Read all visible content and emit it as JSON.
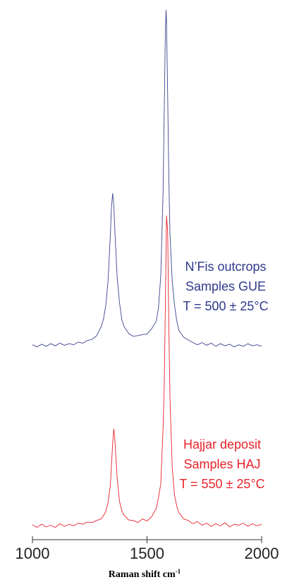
{
  "chart_data": {
    "type": "line",
    "x_label": {
      "text": "Raman shift cm",
      "superscript": "-1"
    },
    "x": [
      1000,
      1020,
      1040,
      1060,
      1080,
      1100,
      1120,
      1140,
      1160,
      1180,
      1200,
      1220,
      1240,
      1260,
      1280,
      1300,
      1310,
      1320,
      1330,
      1340,
      1345,
      1350,
      1355,
      1360,
      1370,
      1380,
      1390,
      1400,
      1420,
      1440,
      1460,
      1480,
      1500,
      1520,
      1540,
      1550,
      1560,
      1570,
      1575,
      1580,
      1583,
      1585,
      1590,
      1595,
      1600,
      1610,
      1620,
      1630,
      1640,
      1660,
      1680,
      1700,
      1720,
      1740,
      1760,
      1780,
      1800,
      1820,
      1840,
      1860,
      1880,
      1900,
      1920,
      1940,
      1960,
      1980,
      2000
    ],
    "series": [
      {
        "color": "#3d4590",
        "values": [
          36.6,
          36.2,
          36.7,
          36.3,
          36.8,
          36.4,
          36.9,
          36.5,
          36.8,
          36.6,
          37.1,
          36.9,
          37.4,
          37.6,
          38.3,
          40.0,
          41.4,
          44.0,
          48.6,
          57.3,
          62.5,
          65.0,
          62.8,
          57.6,
          49.0,
          44.5,
          41.3,
          40.0,
          38.7,
          38.2,
          38.3,
          38.5,
          38.6,
          39.6,
          41.0,
          43.5,
          49.6,
          65.2,
          80.0,
          95.5,
          99.4,
          97.5,
          83.6,
          68.1,
          57.6,
          48.5,
          44.0,
          41.0,
          39.2,
          38.0,
          37.5,
          37.0,
          36.6,
          37.0,
          36.5,
          36.9,
          36.3,
          36.8,
          36.4,
          36.7,
          36.2,
          36.6,
          36.3,
          36.8,
          36.4,
          36.6,
          36.3
        ]
      },
      {
        "color": "#e8232c",
        "values": [
          2.8,
          2.3,
          2.9,
          2.4,
          2.7,
          2.3,
          3.0,
          2.5,
          2.9,
          2.6,
          3.1,
          2.9,
          3.3,
          3.2,
          3.6,
          3.9,
          4.5,
          5.3,
          7.0,
          10.2,
          14.1,
          18.0,
          20.8,
          18.5,
          11.3,
          7.2,
          5.4,
          4.6,
          3.7,
          3.6,
          3.2,
          3.9,
          3.5,
          4.3,
          5.8,
          7.9,
          10.5,
          21.0,
          28.8,
          44.0,
          53.8,
          60.8,
          58.0,
          40.5,
          26.8,
          13.4,
          8.4,
          6.2,
          5.0,
          3.9,
          3.6,
          3.0,
          3.4,
          2.7,
          3.1,
          2.5,
          3.0,
          2.6,
          3.2,
          2.4,
          2.9,
          2.7,
          3.1,
          2.5,
          3.0,
          2.6,
          2.9
        ]
      }
    ],
    "xlim": [
      1000,
      2000
    ],
    "xticks": [
      1000,
      1500,
      2000
    ],
    "ylim": [
      0,
      100
    ],
    "annotations": [
      {
        "color": "#2e3a8c",
        "lines": [
          "N’Fis outcrops",
          "Samples GUE",
          "T = 500 ± 25°C"
        ]
      },
      {
        "color": "#e8232c",
        "lines": [
          "Hajjar deposit",
          "Samples HAJ",
          "T = 550 ± 25°C"
        ]
      }
    ]
  }
}
